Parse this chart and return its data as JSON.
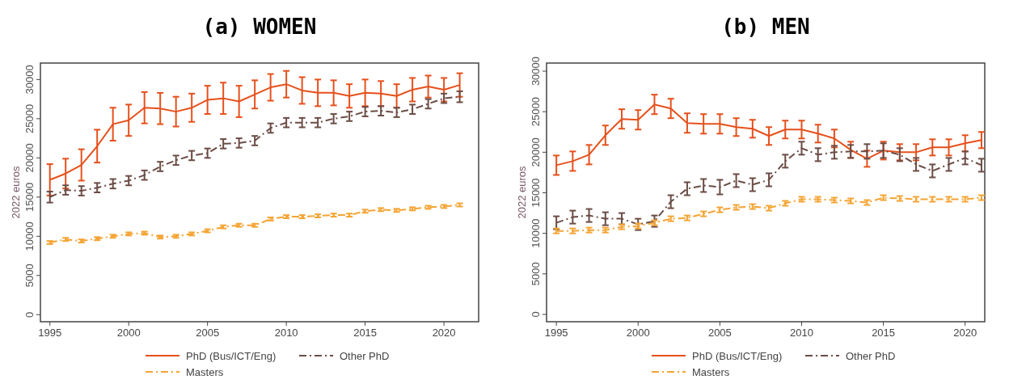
{
  "chart_data": [
    {
      "type": "line",
      "title": "(a) WOMEN",
      "ylabel": "2022 euros",
      "x": [
        1995,
        1996,
        1997,
        1998,
        1999,
        2000,
        2001,
        2002,
        2003,
        2004,
        2005,
        2006,
        2007,
        2008,
        2009,
        2010,
        2011,
        2012,
        2013,
        2014,
        2015,
        2016,
        2017,
        2018,
        2019,
        2020,
        2021
      ],
      "xlim": [
        1994.4,
        2022.2
      ],
      "xticks": [
        1995,
        2000,
        2005,
        2010,
        2015,
        2020
      ],
      "ylim": [
        -900,
        32100
      ],
      "yticks": [
        0,
        5000,
        10000,
        15000,
        20000,
        25000,
        30000
      ],
      "grid": false,
      "legend": "bottom",
      "marker": "none",
      "series": [
        {
          "name": "PhD (Bus/ICT/Eng)",
          "color": "#e6501b",
          "line_style": "solid",
          "values": [
            17200,
            18000,
            19100,
            21500,
            24300,
            24800,
            26400,
            26300,
            25900,
            26400,
            27400,
            27600,
            27200,
            28100,
            29000,
            29400,
            28600,
            28300,
            28300,
            27900,
            28300,
            28200,
            27900,
            28700,
            29100,
            28700,
            29300
          ],
          "errors": [
            2000,
            1900,
            2000,
            2100,
            2100,
            2000,
            2000,
            2000,
            1900,
            1800,
            1800,
            2000,
            2000,
            1800,
            1700,
            1700,
            1700,
            1700,
            1600,
            1500,
            1700,
            1600,
            1500,
            1500,
            1400,
            1500,
            1500
          ]
        },
        {
          "name": "Other PhD",
          "color": "#6b4c45",
          "line_style": "dashed",
          "values": [
            15000,
            15900,
            15800,
            16200,
            16700,
            17100,
            17800,
            18900,
            19700,
            20300,
            20600,
            21800,
            21900,
            22200,
            23800,
            24500,
            24500,
            24500,
            25000,
            25300,
            25900,
            26000,
            25800,
            26200,
            26900,
            27600,
            27800
          ],
          "errors": [
            700,
            600,
            600,
            600,
            600,
            600,
            600,
            600,
            600,
            600,
            600,
            600,
            600,
            600,
            600,
            600,
            600,
            600,
            600,
            600,
            600,
            600,
            600,
            600,
            600,
            600,
            700
          ]
        },
        {
          "name": "Masters",
          "color": "#f5a433",
          "line_style": "dashed",
          "values": [
            9200,
            9600,
            9400,
            9700,
            10000,
            10300,
            10400,
            9900,
            10000,
            10300,
            10700,
            11200,
            11400,
            11400,
            12200,
            12500,
            12500,
            12600,
            12700,
            12700,
            13200,
            13400,
            13300,
            13500,
            13700,
            13800,
            14000
          ],
          "errors": [
            200,
            200,
            200,
            200,
            200,
            200,
            200,
            200,
            200,
            200,
            200,
            200,
            200,
            200,
            200,
            200,
            200,
            200,
            200,
            200,
            200,
            200,
            200,
            200,
            200,
            200,
            200
          ]
        }
      ]
    },
    {
      "type": "line",
      "title": "(b) MEN",
      "ylabel": "2022 euros",
      "x": [
        1995,
        1996,
        1997,
        1998,
        1999,
        2000,
        2001,
        2002,
        2003,
        2004,
        2005,
        2006,
        2007,
        2008,
        2009,
        2010,
        2011,
        2012,
        2013,
        2014,
        2015,
        2016,
        2017,
        2018,
        2019,
        2020,
        2021
      ],
      "xlim": [
        1994.4,
        2021.2
      ],
      "xticks": [
        1995,
        2000,
        2005,
        2010,
        2015,
        2020
      ],
      "ylim": [
        -900,
        31000
      ],
      "yticks": [
        0,
        5000,
        10000,
        15000,
        20000,
        25000,
        30000
      ],
      "grid": false,
      "legend": "bottom",
      "marker": "none",
      "series": [
        {
          "name": "PhD (Bus/ICT/Eng)",
          "color": "#e6501b",
          "line_style": "solid",
          "values": [
            18400,
            18900,
            19700,
            22100,
            24100,
            24000,
            25900,
            25400,
            23600,
            23500,
            23500,
            23100,
            22900,
            22000,
            22800,
            22800,
            22300,
            21700,
            20300,
            19200,
            20200,
            20000,
            20000,
            20600,
            20600,
            21100,
            21500
          ],
          "errors": [
            1200,
            1200,
            1200,
            1200,
            1200,
            1200,
            1200,
            1200,
            1200,
            1200,
            1200,
            1100,
            1100,
            1100,
            1100,
            1100,
            1100,
            1100,
            1000,
            1000,
            1100,
            1000,
            1000,
            1000,
            1000,
            1000,
            1000
          ]
        },
        {
          "name": "Other PhD",
          "color": "#6b4c45",
          "line_style": "dashed",
          "values": [
            11300,
            12000,
            12200,
            11800,
            11800,
            11100,
            11500,
            13900,
            15500,
            15900,
            15700,
            16500,
            16000,
            16600,
            18900,
            20500,
            19700,
            20000,
            20100,
            20100,
            20200,
            19700,
            18500,
            17700,
            18500,
            19300,
            18400
          ],
          "errors": [
            800,
            800,
            800,
            800,
            700,
            700,
            700,
            800,
            800,
            800,
            900,
            800,
            800,
            800,
            800,
            800,
            800,
            800,
            800,
            900,
            900,
            800,
            800,
            800,
            800,
            800,
            800
          ]
        },
        {
          "name": "Masters",
          "color": "#f5a433",
          "line_style": "dashed",
          "values": [
            10300,
            10300,
            10400,
            10400,
            10800,
            10900,
            11300,
            11800,
            11900,
            12400,
            12900,
            13200,
            13300,
            13100,
            13700,
            14200,
            14200,
            14100,
            14000,
            13800,
            14400,
            14300,
            14200,
            14200,
            14200,
            14200,
            14400
          ],
          "errors": [
            300,
            300,
            300,
            300,
            300,
            300,
            300,
            300,
            300,
            300,
            300,
            300,
            300,
            300,
            300,
            300,
            300,
            300,
            300,
            300,
            300,
            300,
            300,
            300,
            300,
            300,
            300
          ]
        }
      ]
    }
  ]
}
